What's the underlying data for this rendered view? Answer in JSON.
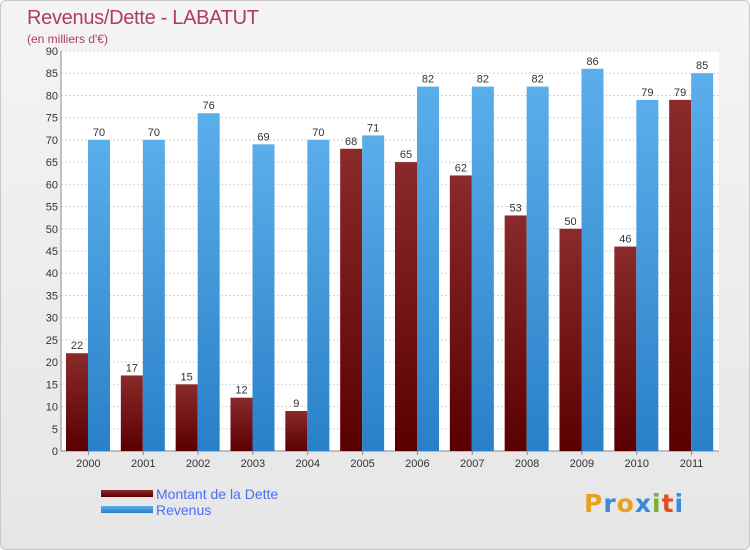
{
  "chart_data": {
    "type": "bar",
    "title": "Revenus/Dette - LABATUT",
    "subtitle": "(en milliers d'€)",
    "categories": [
      "2000",
      "2001",
      "2002",
      "2003",
      "2004",
      "2005",
      "2006",
      "2007",
      "2008",
      "2009",
      "2010",
      "2011"
    ],
    "series": [
      {
        "name": "Montant de la Dette",
        "color": "#7a1414",
        "values": [
          22,
          17,
          15,
          12,
          9,
          68,
          65,
          62,
          53,
          50,
          46,
          79
        ]
      },
      {
        "name": "Revenus",
        "color": "#4aa3e6",
        "values": [
          70,
          70,
          76,
          69,
          70,
          71,
          82,
          82,
          82,
          86,
          79,
          85
        ]
      }
    ],
    "ylim": [
      0,
      90
    ],
    "yticks": [
      0,
      5,
      10,
      15,
      20,
      25,
      30,
      35,
      40,
      45,
      50,
      55,
      60,
      65,
      70,
      75,
      80,
      85,
      90
    ],
    "grid": true,
    "legend_position": "bottom-left"
  },
  "logo": {
    "letters": [
      "P",
      "r",
      "o",
      "x",
      "i",
      "t",
      "i"
    ],
    "colors": [
      "#e8a020",
      "#3a8ad8",
      "#e8a020",
      "#3a8ad8",
      "#7ab030",
      "#e05020",
      "#3a8ad8"
    ]
  }
}
